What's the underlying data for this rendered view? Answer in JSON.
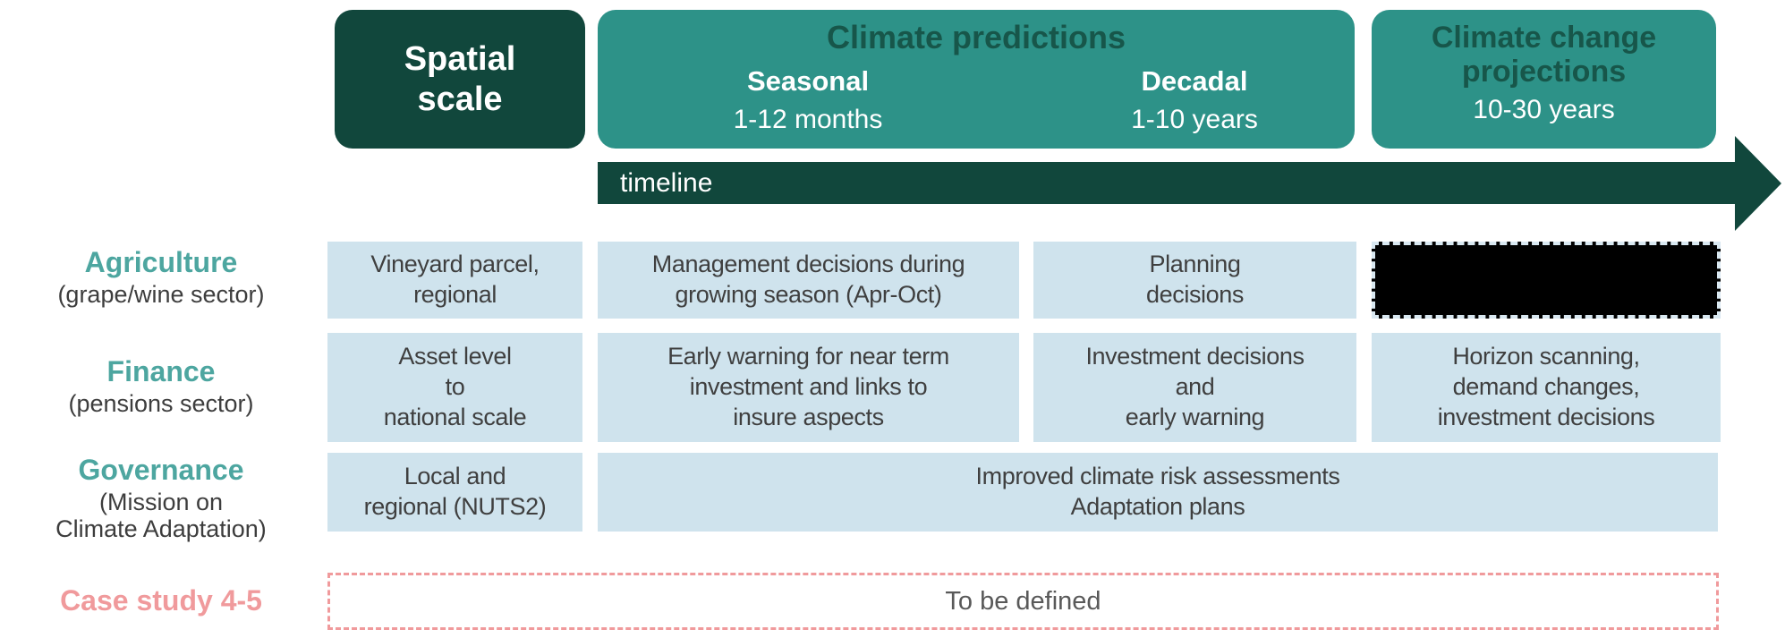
{
  "colors": {
    "dark_teal": "#11473c",
    "teal": "#2d9288",
    "header_title_text": "#17564a",
    "light_blue_cell": "#cfe3ed",
    "cell_text": "#3f3f3f",
    "label_teal": "#4da6a0",
    "label_gray": "#3d3d3d",
    "salmon": "#f09a9c",
    "empty_cell_fill": "#000000",
    "empty_cell_dash": "#d9e8f1"
  },
  "header": {
    "spatial_scale": {
      "title": "Spatial\nscale"
    },
    "climate_predictions": {
      "title": "Climate predictions",
      "columns": [
        {
          "label": "Seasonal",
          "range": "1-12 months"
        },
        {
          "label": "Decadal",
          "range": "1-10 years"
        }
      ]
    },
    "climate_projections": {
      "title": "Climate change\nprojections",
      "range": "10-30 years"
    },
    "timeline_label": "timeline"
  },
  "rows": [
    {
      "label": "Agriculture",
      "sublabel": "(grape/wine sector)",
      "cells": [
        {
          "text": "Vineyard parcel,\nregional"
        },
        {
          "text": "Management decisions during\ngrowing season (Apr-Oct)"
        },
        {
          "text": "Planning\ndecisions"
        },
        {
          "text": ""
        }
      ]
    },
    {
      "label": "Finance",
      "sublabel": "(pensions sector)",
      "cells": [
        {
          "text": "Asset level\nto\nnational scale"
        },
        {
          "text": "Early warning for near term\ninvestment and links to\ninsure aspects"
        },
        {
          "text": "Investment decisions\nand\nearly warning"
        },
        {
          "text": "Horizon scanning,\ndemand changes,\ninvestment decisions"
        }
      ]
    },
    {
      "label": "Governance",
      "sublabel": "(Mission on\nClimate Adaptation)",
      "cells": [
        {
          "text": "Local and\nregional (NUTS2)"
        },
        {
          "text": "Improved climate risk assessments\nAdaptation plans"
        }
      ]
    }
  ],
  "case_study": {
    "label": "Case study 4-5",
    "value": "To be defined"
  }
}
